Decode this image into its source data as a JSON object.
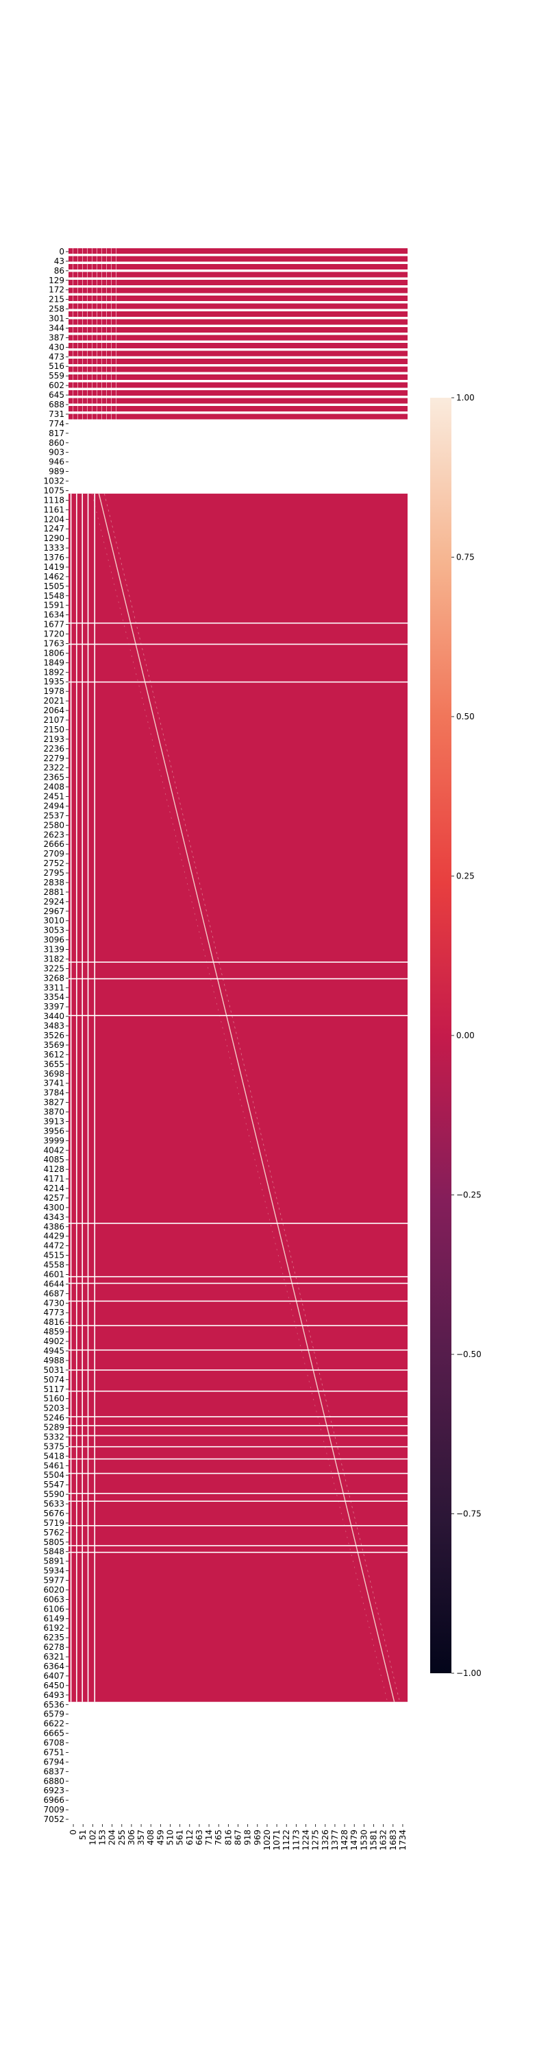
{
  "chart_data": {
    "type": "heatmap",
    "title": "",
    "xlabel": "",
    "ylabel": "",
    "x_ticks": [
      "0",
      "51",
      "102",
      "153",
      "204",
      "255",
      "306",
      "357",
      "408",
      "459",
      "510",
      "561",
      "612",
      "663",
      "714",
      "765",
      "816",
      "867",
      "918",
      "969",
      "1020",
      "1071",
      "1122",
      "1173",
      "1224",
      "1275",
      "1326",
      "1377",
      "1428",
      "1479",
      "1530",
      "1581",
      "1632",
      "1683",
      "1734"
    ],
    "y_ticks": [
      "0",
      "43",
      "86",
      "129",
      "172",
      "215",
      "258",
      "301",
      "344",
      "387",
      "430",
      "473",
      "516",
      "559",
      "602",
      "645",
      "688",
      "731",
      "774",
      "817",
      "860",
      "903",
      "946",
      "989",
      "1032",
      "1075",
      "1118",
      "1161",
      "1204",
      "1247",
      "1290",
      "1333",
      "1376",
      "1419",
      "1462",
      "1505",
      "1548",
      "1591",
      "1634",
      "1677",
      "1720",
      "1763",
      "1806",
      "1849",
      "1892",
      "1935",
      "1978",
      "2021",
      "2064",
      "2107",
      "2150",
      "2193",
      "2236",
      "2279",
      "2322",
      "2365",
      "2408",
      "2451",
      "2494",
      "2537",
      "2580",
      "2623",
      "2666",
      "2709",
      "2752",
      "2795",
      "2838",
      "2881",
      "2924",
      "2967",
      "3010",
      "3053",
      "3096",
      "3139",
      "3182",
      "3225",
      "3268",
      "3311",
      "3354",
      "3397",
      "3440",
      "3483",
      "3526",
      "3569",
      "3612",
      "3655",
      "3698",
      "3741",
      "3784",
      "3827",
      "3870",
      "3913",
      "3956",
      "3999",
      "4042",
      "4085",
      "4128",
      "4171",
      "4214",
      "4257",
      "4300",
      "4343",
      "4386",
      "4429",
      "4472",
      "4515",
      "4558",
      "4601",
      "4644",
      "4687",
      "4730",
      "4773",
      "4816",
      "4859",
      "4902",
      "4945",
      "4988",
      "5031",
      "5074",
      "5117",
      "5160",
      "5203",
      "5246",
      "5289",
      "5332",
      "5375",
      "5418",
      "5461",
      "5504",
      "5547",
      "5590",
      "5633",
      "5676",
      "5719",
      "5762",
      "5805",
      "5848",
      "5891",
      "5934",
      "5977",
      "6020",
      "6063",
      "6106",
      "6149",
      "6192",
      "6235",
      "6278",
      "6321",
      "6364",
      "6407",
      "6450",
      "6493",
      "6536",
      "6579",
      "6622",
      "6665",
      "6708",
      "6751",
      "6794",
      "6837",
      "6880",
      "6923",
      "6966",
      "7009",
      "7052"
    ],
    "x_range": [
      0,
      1785
    ],
    "y_range": [
      0,
      7095
    ],
    "colorbar": {
      "ticks": [
        "1.00",
        "0.75",
        "0.50",
        "0.25",
        "0.00",
        "−0.25",
        "−0.50",
        "−0.75",
        "−1.00"
      ],
      "range": [
        -1,
        1
      ],
      "colormap": "rocket"
    },
    "dominant_value": 0.0,
    "regions": [
      {
        "kind": "striped",
        "rows": [
          0,
          760
        ],
        "cols": [
          0,
          1785
        ],
        "value": 0.0
      },
      {
        "kind": "empty",
        "rows": [
          760,
          1110
        ],
        "cols": [
          0,
          1785
        ]
      },
      {
        "kind": "filled",
        "rows": [
          1110,
          6545
        ],
        "cols": [
          0,
          1785
        ],
        "value": 0.0
      },
      {
        "kind": "empty",
        "rows": [
          6545,
          7095
        ],
        "cols": [
          0,
          1785
        ]
      }
    ],
    "blank_rows": [
      1690,
      1785,
      1955,
      3215,
      3290,
      3455,
      4390,
      4630,
      4660,
      4740,
      4850,
      4960,
      5050,
      5145,
      5260,
      5300,
      5345,
      5395,
      5450,
      5515,
      5605,
      5640,
      5750,
      5840,
      5870
    ],
    "blank_cols": [
      10,
      40,
      70,
      100,
      135
    ],
    "diagonal": {
      "start": [
        1110,
        160
      ],
      "end": [
        6545,
        1715
      ],
      "value": 1.0
    }
  }
}
